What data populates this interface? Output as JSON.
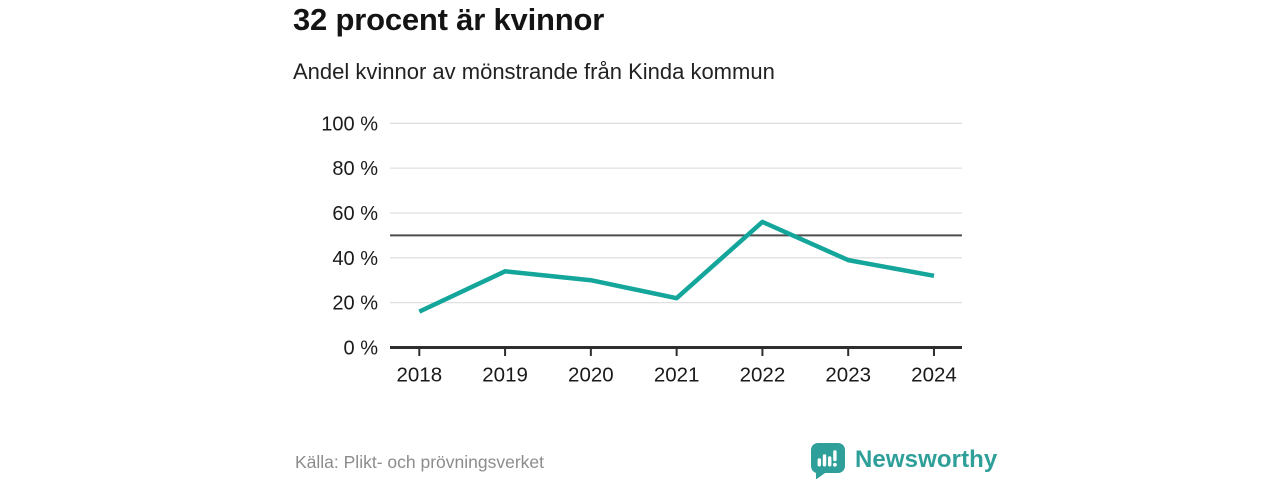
{
  "header": {
    "title": "32 procent är kvinnor",
    "subtitle": "Andel kvinnor av mönstrande från Kinda kommun"
  },
  "chart_data": {
    "type": "line",
    "title": "32 procent är kvinnor",
    "subtitle": "Andel kvinnor av mönstrande från Kinda kommun",
    "categories": [
      "2018",
      "2019",
      "2020",
      "2021",
      "2022",
      "2023",
      "2024"
    ],
    "series": [
      {
        "name": "Andel kvinnor av mönstrande",
        "values": [
          16,
          34,
          30,
          22,
          56,
          39,
          32
        ]
      }
    ],
    "unit": "%",
    "ylim": [
      0,
      100
    ],
    "yticks": [
      0,
      20,
      40,
      60,
      80,
      100
    ],
    "reference_line": 50,
    "grid": true,
    "legend": "none",
    "colors": {
      "line": "#14a69b",
      "reference_line": "#4d4d4d",
      "grid": "#e0e0e0",
      "axis": "#2e2e2e",
      "tick_label": "#1a1a1a"
    }
  },
  "footer": {
    "source": "Källa: Plikt- och prövningsverket",
    "brand": "Newsworthy",
    "brand_color": "#2f9f9a"
  }
}
